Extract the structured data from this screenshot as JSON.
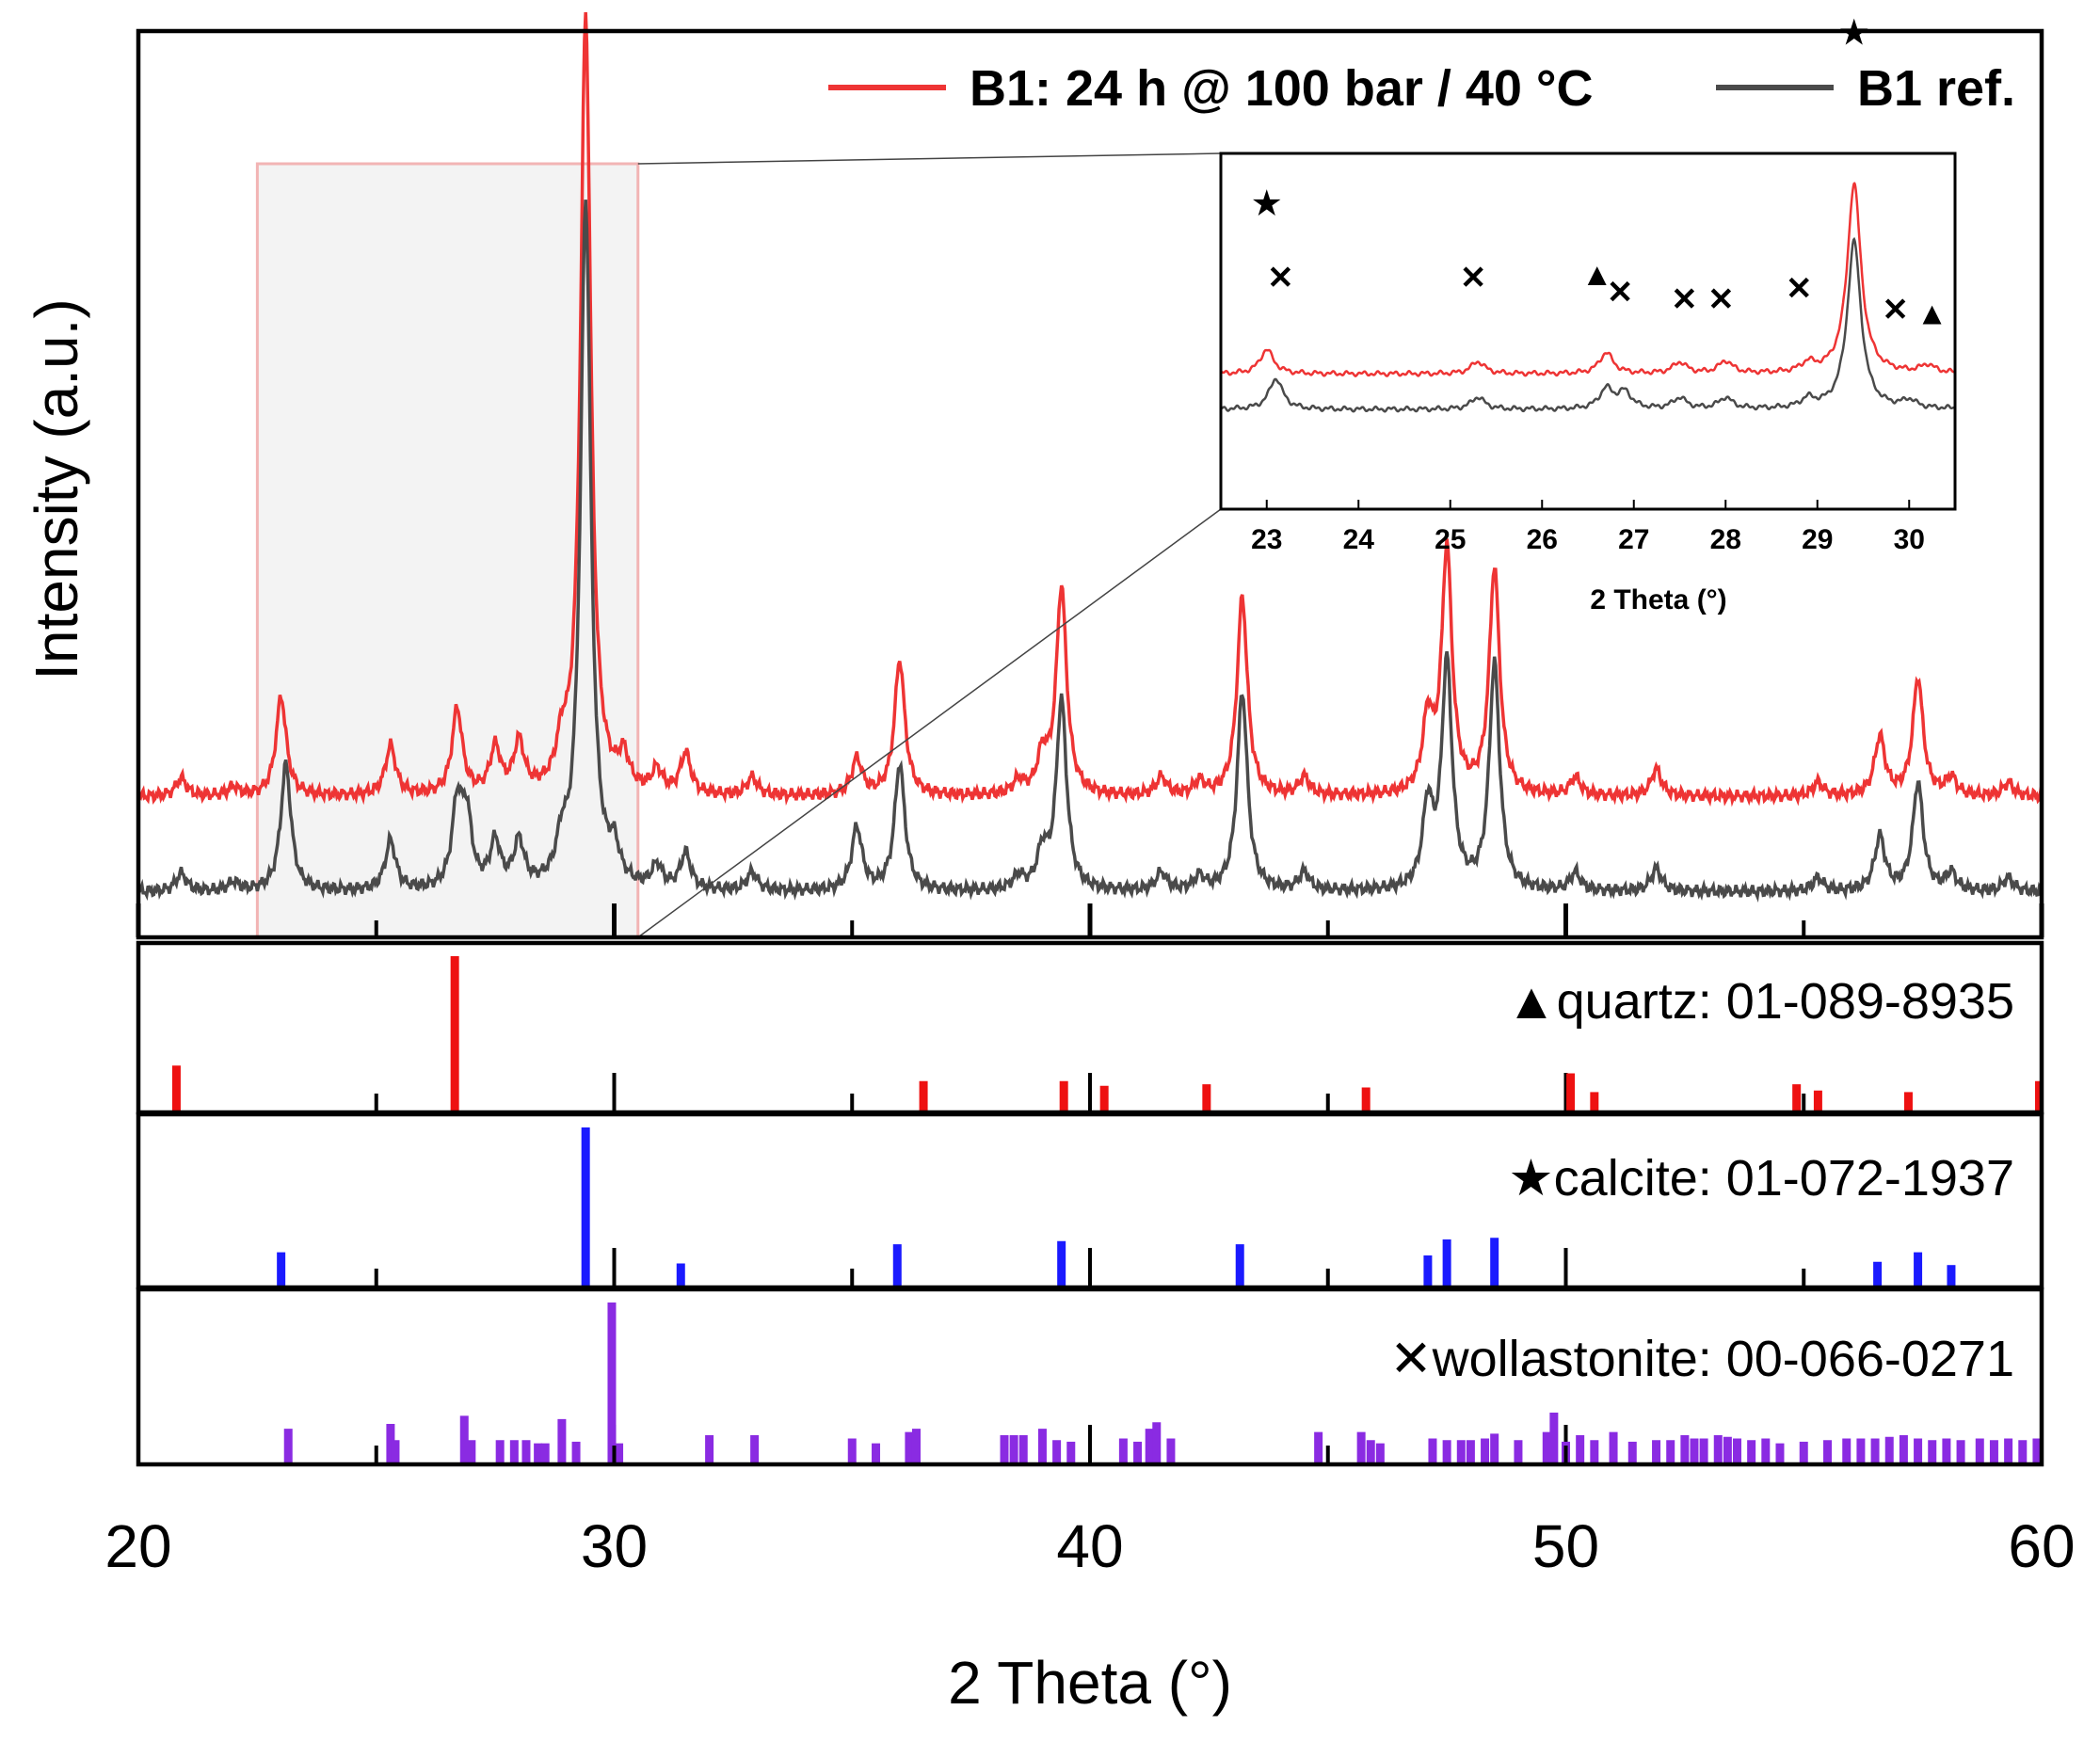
{
  "chart_data": {
    "type": "line",
    "xlabel": "2 Theta (°)",
    "ylabel": "Intensity (a.u.)",
    "xlim": [
      20,
      60
    ],
    "x_ticks": [
      20,
      30,
      40,
      50,
      60
    ],
    "grid": false,
    "legend_position": "top-right",
    "series": [
      {
        "name": "B1: 24 h @ 100 bar / 40 °C",
        "color": "#ee3434",
        "offset": 0.155,
        "scale": 1.0,
        "peaks": [
          [
            20.9,
            0.02
          ],
          [
            22.0,
            0.01
          ],
          [
            23.0,
            0.11
          ],
          [
            25.3,
            0.055
          ],
          [
            26.7,
            0.095
          ],
          [
            27.5,
            0.05
          ],
          [
            28.0,
            0.055
          ],
          [
            28.9,
            0.04
          ],
          [
            29.4,
            0.86
          ],
          [
            30.2,
            0.035
          ],
          [
            30.9,
            0.025
          ],
          [
            31.5,
            0.045
          ],
          [
            32.9,
            0.02
          ],
          [
            35.1,
            0.04
          ],
          [
            36.0,
            0.15
          ],
          [
            38.5,
            0.015
          ],
          [
            39.0,
            0.04
          ],
          [
            39.4,
            0.23
          ],
          [
            41.5,
            0.02
          ],
          [
            42.3,
            0.015
          ],
          [
            43.2,
            0.22
          ],
          [
            44.5,
            0.02
          ],
          [
            47.1,
            0.08
          ],
          [
            47.5,
            0.27
          ],
          [
            48.5,
            0.25
          ],
          [
            50.2,
            0.02
          ],
          [
            51.9,
            0.03
          ],
          [
            55.3,
            0.015
          ],
          [
            56.6,
            0.065
          ],
          [
            57.4,
            0.13
          ],
          [
            58.1,
            0.02
          ],
          [
            59.3,
            0.015
          ]
        ]
      },
      {
        "name": "B1 ref.",
        "color": "#4a4a4a",
        "offset": 0.05,
        "scale": 1.0,
        "peaks": [
          [
            20.9,
            0.02
          ],
          [
            22.0,
            0.01
          ],
          [
            23.1,
            0.14
          ],
          [
            25.3,
            0.055
          ],
          [
            26.7,
            0.09
          ],
          [
            26.9,
            0.075
          ],
          [
            27.5,
            0.05
          ],
          [
            28.0,
            0.05
          ],
          [
            28.9,
            0.04
          ],
          [
            29.4,
            0.76
          ],
          [
            30.0,
            0.035
          ],
          [
            30.9,
            0.025
          ],
          [
            31.5,
            0.04
          ],
          [
            32.9,
            0.02
          ],
          [
            35.1,
            0.07
          ],
          [
            36.0,
            0.14
          ],
          [
            38.5,
            0.015
          ],
          [
            39.0,
            0.04
          ],
          [
            39.4,
            0.21
          ],
          [
            41.5,
            0.02
          ],
          [
            42.3,
            0.015
          ],
          [
            43.2,
            0.22
          ],
          [
            44.5,
            0.02
          ],
          [
            47.1,
            0.09
          ],
          [
            47.5,
            0.25
          ],
          [
            48.5,
            0.25
          ],
          [
            50.2,
            0.02
          ],
          [
            51.9,
            0.025
          ],
          [
            55.3,
            0.015
          ],
          [
            56.6,
            0.06
          ],
          [
            57.4,
            0.12
          ],
          [
            58.1,
            0.02
          ],
          [
            59.3,
            0.015
          ]
        ]
      }
    ],
    "zoom_region": [
      22.5,
      30.5
    ],
    "inset": {
      "xlabel": "2 Theta (°)",
      "xlim": [
        22.5,
        30.5
      ],
      "x_ticks": [
        23,
        24,
        25,
        26,
        27,
        28,
        29,
        30
      ],
      "annotations": [
        {
          "symbol": "★",
          "x": 23.0,
          "color": "#000000",
          "level": 0.45
        },
        {
          "symbol": "✕",
          "x": 23.15,
          "color": "#000000",
          "level": 0.24
        },
        {
          "symbol": "✕",
          "x": 25.25,
          "color": "#000000",
          "level": 0.24
        },
        {
          "symbol": "▲",
          "x": 26.6,
          "color": "#ee0000",
          "level": 0.25
        },
        {
          "symbol": "✕",
          "x": 26.85,
          "color": "#000000",
          "level": 0.2
        },
        {
          "symbol": "✕",
          "x": 27.55,
          "color": "#000000",
          "level": 0.18
        },
        {
          "symbol": "✕",
          "x": 27.95,
          "color": "#000000",
          "level": 0.18
        },
        {
          "symbol": "✕",
          "x": 28.8,
          "color": "#000000",
          "level": 0.21
        },
        {
          "symbol": "★",
          "x": 29.4,
          "color": "#ee0000",
          "level": 0.93
        },
        {
          "symbol": "✕",
          "x": 29.85,
          "color": "#ee0000",
          "level": 0.15
        },
        {
          "symbol": "▲",
          "x": 30.25,
          "color": "#000000",
          "level": 0.14
        }
      ]
    },
    "reference_panels": [
      {
        "label": "▲quartz: 01-089-8935",
        "color": "#ee1111",
        "sticks": [
          [
            20.8,
            0.3
          ],
          [
            26.65,
            1.0
          ],
          [
            36.5,
            0.2
          ],
          [
            39.45,
            0.2
          ],
          [
            40.3,
            0.17
          ],
          [
            42.45,
            0.18
          ],
          [
            45.8,
            0.16
          ],
          [
            50.1,
            0.25
          ],
          [
            50.6,
            0.13
          ],
          [
            54.85,
            0.18
          ],
          [
            55.3,
            0.14
          ],
          [
            57.2,
            0.13
          ],
          [
            59.95,
            0.2
          ]
        ]
      },
      {
        "label": "★calcite: 01-072-1937",
        "color": "#1a1aff",
        "sticks": [
          [
            23.0,
            0.22
          ],
          [
            29.4,
            1.0
          ],
          [
            31.4,
            0.15
          ],
          [
            35.95,
            0.27
          ],
          [
            39.4,
            0.29
          ],
          [
            43.15,
            0.27
          ],
          [
            47.1,
            0.2
          ],
          [
            47.5,
            0.3
          ],
          [
            48.5,
            0.31
          ],
          [
            56.55,
            0.16
          ],
          [
            57.4,
            0.22
          ],
          [
            58.1,
            0.14
          ]
        ]
      },
      {
        "label": "✕wollastonite: 00-066-0271",
        "color": "#8a2be2",
        "sticks": [
          [
            23.15,
            0.22
          ],
          [
            25.3,
            0.25
          ],
          [
            25.4,
            0.15
          ],
          [
            26.85,
            0.3
          ],
          [
            27.0,
            0.15
          ],
          [
            27.6,
            0.15
          ],
          [
            27.9,
            0.15
          ],
          [
            28.15,
            0.15
          ],
          [
            28.4,
            0.13
          ],
          [
            28.55,
            0.13
          ],
          [
            28.9,
            0.28
          ],
          [
            29.2,
            0.14
          ],
          [
            29.95,
            1.0
          ],
          [
            30.1,
            0.13
          ],
          [
            32.0,
            0.18
          ],
          [
            32.95,
            0.18
          ],
          [
            35.0,
            0.16
          ],
          [
            35.5,
            0.13
          ],
          [
            36.2,
            0.2
          ],
          [
            36.35,
            0.22
          ],
          [
            38.2,
            0.18
          ],
          [
            38.4,
            0.18
          ],
          [
            38.6,
            0.18
          ],
          [
            39.0,
            0.22
          ],
          [
            39.3,
            0.15
          ],
          [
            39.6,
            0.14
          ],
          [
            40.7,
            0.16
          ],
          [
            41.0,
            0.14
          ],
          [
            41.25,
            0.22
          ],
          [
            41.4,
            0.26
          ],
          [
            41.7,
            0.16
          ],
          [
            44.8,
            0.2
          ],
          [
            45.7,
            0.2
          ],
          [
            45.9,
            0.15
          ],
          [
            46.1,
            0.13
          ],
          [
            47.2,
            0.16
          ],
          [
            47.5,
            0.15
          ],
          [
            47.8,
            0.15
          ],
          [
            48.0,
            0.15
          ],
          [
            48.3,
            0.16
          ],
          [
            48.5,
            0.19
          ],
          [
            49.0,
            0.15
          ],
          [
            49.6,
            0.2
          ],
          [
            49.75,
            0.32
          ],
          [
            50.0,
            0.14
          ],
          [
            50.3,
            0.18
          ],
          [
            50.6,
            0.15
          ],
          [
            51.0,
            0.2
          ],
          [
            51.4,
            0.14
          ],
          [
            51.9,
            0.15
          ],
          [
            52.2,
            0.15
          ],
          [
            52.5,
            0.18
          ],
          [
            52.7,
            0.16
          ],
          [
            52.9,
            0.16
          ],
          [
            53.2,
            0.18
          ],
          [
            53.4,
            0.17
          ],
          [
            53.6,
            0.16
          ],
          [
            53.9,
            0.15
          ],
          [
            54.2,
            0.16
          ],
          [
            54.5,
            0.13
          ],
          [
            55.0,
            0.14
          ],
          [
            55.5,
            0.15
          ],
          [
            55.9,
            0.16
          ],
          [
            56.2,
            0.16
          ],
          [
            56.5,
            0.16
          ],
          [
            56.8,
            0.17
          ],
          [
            57.1,
            0.18
          ],
          [
            57.4,
            0.16
          ],
          [
            57.7,
            0.15
          ],
          [
            58.0,
            0.16
          ],
          [
            58.3,
            0.15
          ],
          [
            58.7,
            0.16
          ],
          [
            59.0,
            0.15
          ],
          [
            59.3,
            0.16
          ],
          [
            59.6,
            0.15
          ],
          [
            59.9,
            0.16
          ]
        ]
      }
    ]
  }
}
